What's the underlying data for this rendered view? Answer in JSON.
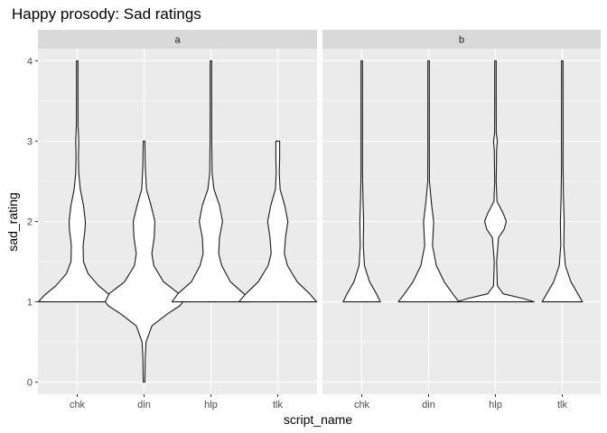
{
  "chart_data": {
    "type": "violin",
    "title": "Happy prosody: Sad ratings",
    "xlabel": "script_name",
    "ylabel": "sad_rating",
    "ylim": [
      -0.15,
      4.15
    ],
    "yticks": [
      0,
      1,
      2,
      3,
      4
    ],
    "categories": [
      "chk",
      "din",
      "hlp",
      "tlk"
    ],
    "grid": true,
    "legend": "none",
    "colors": {
      "panel_bg": "#ebebeb",
      "grid": "#ffffff",
      "strip_bg": "#d9d9d9",
      "violin_fill": "#ffffff",
      "violin_stroke": "#1a1a1a"
    },
    "facets": [
      {
        "label": "a",
        "violins": [
          {
            "category": "chk",
            "min": 1,
            "max": 4,
            "density": [
              [
                1.0,
                1.0
              ],
              [
                1.08,
                0.85
              ],
              [
                1.2,
                0.55
              ],
              [
                1.35,
                0.28
              ],
              [
                1.5,
                0.16
              ],
              [
                1.7,
                0.15
              ],
              [
                1.9,
                0.2
              ],
              [
                2.0,
                0.21
              ],
              [
                2.2,
                0.16
              ],
              [
                2.4,
                0.08
              ],
              [
                2.6,
                0.04
              ],
              [
                2.8,
                0.03
              ],
              [
                3.0,
                0.04
              ],
              [
                3.2,
                0.02
              ],
              [
                3.5,
                0.015
              ],
              [
                4.0,
                0.01
              ]
            ]
          },
          {
            "category": "din",
            "min": 0,
            "max": 3,
            "density": [
              [
                0.0,
                0.02
              ],
              [
                0.3,
                0.03
              ],
              [
                0.5,
                0.05
              ],
              [
                0.7,
                0.2
              ],
              [
                0.85,
                0.6
              ],
              [
                0.95,
                0.92
              ],
              [
                1.0,
                1.0
              ],
              [
                1.1,
                0.9
              ],
              [
                1.25,
                0.5
              ],
              [
                1.45,
                0.25
              ],
              [
                1.6,
                0.2
              ],
              [
                1.8,
                0.26
              ],
              [
                2.0,
                0.28
              ],
              [
                2.2,
                0.18
              ],
              [
                2.4,
                0.06
              ],
              [
                2.7,
                0.03
              ],
              [
                3.0,
                0.02
              ]
            ]
          },
          {
            "category": "hlp",
            "min": 1,
            "max": 4,
            "density": [
              [
                1.0,
                1.0
              ],
              [
                1.1,
                0.85
              ],
              [
                1.25,
                0.5
              ],
              [
                1.45,
                0.28
              ],
              [
                1.6,
                0.2
              ],
              [
                1.8,
                0.22
              ],
              [
                2.0,
                0.3
              ],
              [
                2.2,
                0.22
              ],
              [
                2.4,
                0.08
              ],
              [
                2.6,
                0.03
              ],
              [
                3.0,
                0.02
              ],
              [
                3.5,
                0.015
              ],
              [
                4.0,
                0.01
              ]
            ]
          },
          {
            "category": "tlk",
            "min": 1,
            "max": 3,
            "density": [
              [
                1.0,
                1.0
              ],
              [
                1.1,
                0.82
              ],
              [
                1.25,
                0.5
              ],
              [
                1.45,
                0.25
              ],
              [
                1.6,
                0.17
              ],
              [
                1.8,
                0.2
              ],
              [
                2.0,
                0.26
              ],
              [
                2.2,
                0.18
              ],
              [
                2.4,
                0.06
              ],
              [
                2.6,
                0.04
              ],
              [
                2.8,
                0.05
              ],
              [
                3.0,
                0.05
              ]
            ]
          }
        ]
      },
      {
        "label": "b",
        "violins": [
          {
            "category": "chk",
            "min": 1,
            "max": 4,
            "density": [
              [
                1.0,
                0.48
              ],
              [
                1.1,
                0.38
              ],
              [
                1.25,
                0.2
              ],
              [
                1.45,
                0.07
              ],
              [
                1.7,
                0.04
              ],
              [
                2.0,
                0.05
              ],
              [
                2.3,
                0.03
              ],
              [
                2.6,
                0.015
              ],
              [
                3.0,
                0.012
              ],
              [
                4.0,
                0.01
              ]
            ]
          },
          {
            "category": "din",
            "min": 1,
            "max": 4,
            "density": [
              [
                1.0,
                0.78
              ],
              [
                1.1,
                0.62
              ],
              [
                1.25,
                0.4
              ],
              [
                1.45,
                0.2
              ],
              [
                1.7,
                0.1
              ],
              [
                1.9,
                0.12
              ],
              [
                2.0,
                0.13
              ],
              [
                2.2,
                0.08
              ],
              [
                2.5,
                0.02
              ],
              [
                3.0,
                0.012
              ],
              [
                4.0,
                0.01
              ]
            ]
          },
          {
            "category": "hlp",
            "min": 1,
            "max": 4,
            "density": [
              [
                1.0,
                1.0
              ],
              [
                1.04,
                0.72
              ],
              [
                1.1,
                0.2
              ],
              [
                1.2,
                0.05
              ],
              [
                1.5,
                0.03
              ],
              [
                1.8,
                0.08
              ],
              [
                1.9,
                0.22
              ],
              [
                2.0,
                0.28
              ],
              [
                2.1,
                0.2
              ],
              [
                2.25,
                0.04
              ],
              [
                2.5,
                0.015
              ],
              [
                2.9,
                0.03
              ],
              [
                3.0,
                0.05
              ],
              [
                3.1,
                0.02
              ],
              [
                3.5,
                0.015
              ],
              [
                4.0,
                0.01
              ]
            ]
          },
          {
            "category": "tlk",
            "min": 1,
            "max": 4,
            "density": [
              [
                1.0,
                0.52
              ],
              [
                1.1,
                0.4
              ],
              [
                1.25,
                0.22
              ],
              [
                1.45,
                0.08
              ],
              [
                1.7,
                0.04
              ],
              [
                2.0,
                0.05
              ],
              [
                2.3,
                0.03
              ],
              [
                2.7,
                0.015
              ],
              [
                3.0,
                0.02
              ],
              [
                4.0,
                0.01
              ]
            ]
          }
        ]
      }
    ]
  }
}
